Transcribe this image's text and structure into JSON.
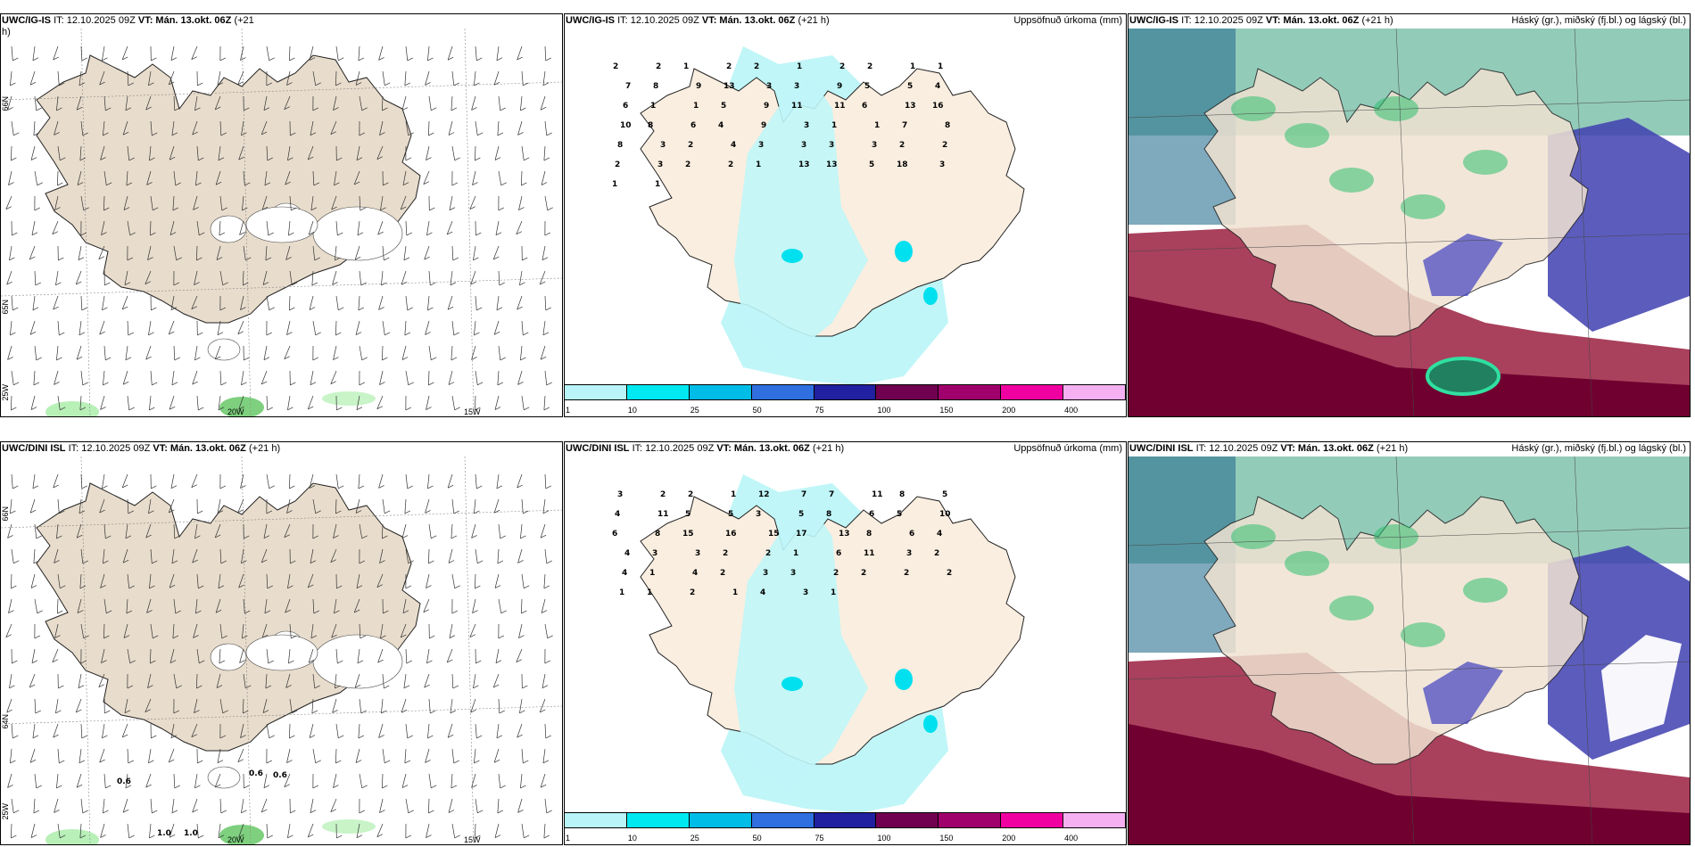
{
  "panels": [
    {
      "model": "UWC/IG-IS",
      "it": "IT: 12.10.2025 09Z",
      "vt": "VT: Mán. 13.okt. 06Z",
      "lead": "(+21",
      "extra": "h)",
      "right": ""
    },
    {
      "model": "UWC/IG-IS",
      "it": "IT: 12.10.2025 09Z",
      "vt": "VT: Mán. 13.okt. 06Z",
      "lead": "(+21 h)",
      "right": "Uppsöfnuð úrkoma (mm)"
    },
    {
      "model": "UWC/IG-IS",
      "it": "IT: 12.10.2025 09Z",
      "vt": "VT: Mán. 13.okt. 06Z",
      "lead": "(+21 h)",
      "right": "Háský (gr.), miðský (fj.bl.) og lágský (bl.)"
    },
    {
      "model": "UWC/DINI ISL",
      "it": "IT: 12.10.2025 09Z",
      "vt": "VT: Mán. 13.okt. 06Z",
      "lead": "(+21 h)",
      "right": ""
    },
    {
      "model": "UWC/DINI ISL",
      "it": "IT: 12.10.2025 09Z",
      "vt": "VT: Mán. 13.okt. 06Z",
      "lead": "(+21 h)",
      "right": "Uppsöfnuð úrkoma (mm)"
    },
    {
      "model": "UWC/DINI ISL",
      "it": "IT: 12.10.2025 09Z",
      "vt": "VT: Mán. 13.okt. 06Z",
      "lead": "(+21 h)",
      "right": "Háský (gr.), miðský (fj.bl.) og lágský (bl.)"
    }
  ],
  "axis_labels": {
    "lon20": "20W",
    "lon15": "15W",
    "lon25": "25W",
    "lat66": "66N",
    "lat64": "64N",
    "lat65": "65N"
  },
  "colorbar": {
    "labels": [
      "1",
      "10",
      "25",
      "50",
      "75",
      "100",
      "150",
      "200",
      "400"
    ],
    "colors": [
      "#b8f4f8",
      "#00e8f0",
      "#00bde8",
      "#2f6fe0",
      "#2020a0",
      "#700050",
      "#a0006c",
      "#f000a0",
      "#f4b0f0"
    ]
  },
  "wind_values_top": [],
  "wind_values_bottom": [
    "0.6",
    "0.6",
    "0.6",
    "1.0",
    "1.0"
  ],
  "precip_top": [
    "2",
    "2",
    "1",
    "2",
    "2",
    "1",
    "2",
    "2",
    "1",
    "1",
    "7",
    "8",
    "9",
    "13",
    "3",
    "3",
    "9",
    "5",
    "5",
    "4",
    "6",
    "1",
    "1",
    "5",
    "9",
    "11",
    "11",
    "6",
    "13",
    "16",
    "10",
    "8",
    "6",
    "4",
    "9",
    "3",
    "1",
    "1",
    "7",
    "8",
    "8",
    "3",
    "2",
    "4",
    "3",
    "3",
    "3",
    "3",
    "2",
    "2",
    "2",
    "3",
    "2",
    "2",
    "1",
    "13",
    "13",
    "5",
    "18",
    "3",
    "1",
    "1"
  ],
  "precip_bottom": [
    "3",
    "2",
    "2",
    "1",
    "12",
    "7",
    "7",
    "11",
    "8",
    "5",
    "4",
    "11",
    "5",
    "5",
    "3",
    "5",
    "8",
    "6",
    "5",
    "10",
    "6",
    "8",
    "15",
    "16",
    "15",
    "17",
    "13",
    "8",
    "6",
    "4",
    "4",
    "3",
    "3",
    "2",
    "2",
    "1",
    "6",
    "11",
    "3",
    "2",
    "4",
    "1",
    "4",
    "2",
    "3",
    "3",
    "2",
    "2",
    "2",
    "2",
    "1",
    "1",
    "2",
    "1",
    "4",
    "3",
    "1"
  ]
}
